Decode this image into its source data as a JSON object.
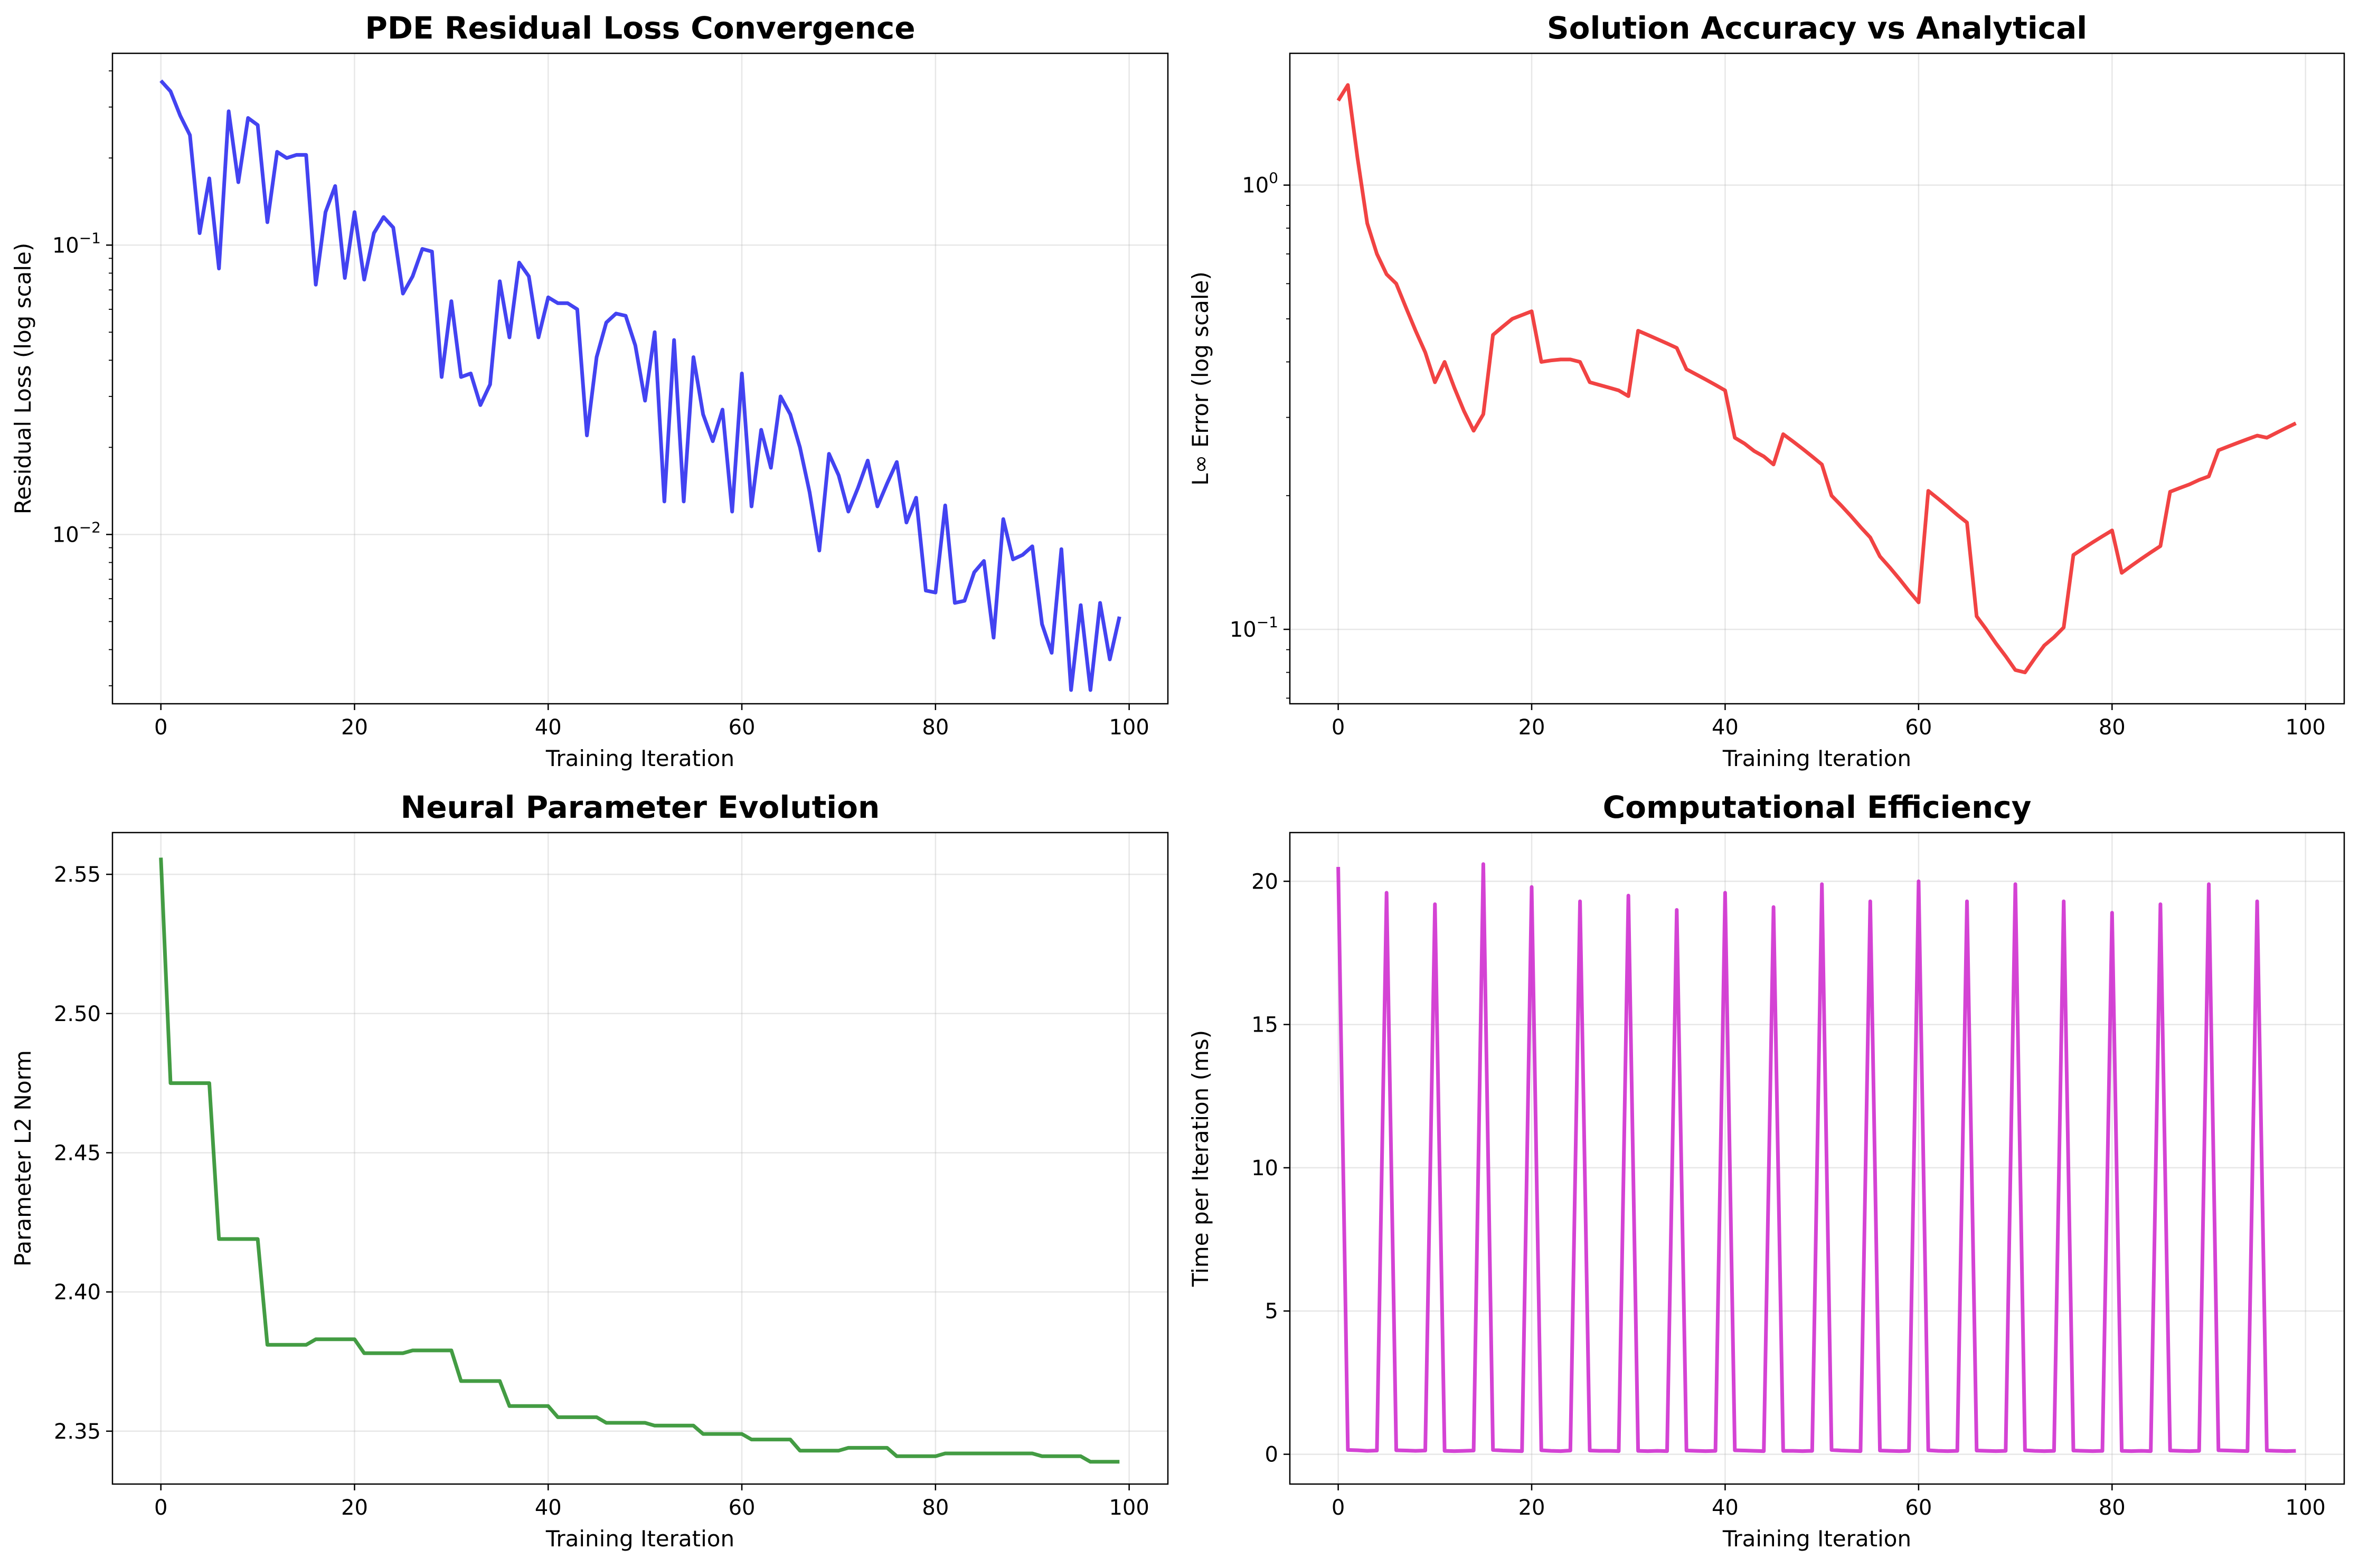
{
  "chart_data": [
    {
      "type": "line",
      "title": "PDE Residual Loss Convergence",
      "xlabel": "Training Iteration",
      "ylabel": "Residual Loss (log scale)",
      "yscale": "log",
      "xlim": [
        -5,
        104
      ],
      "ylim": [
        0.0026,
        0.46
      ],
      "xticks": [
        0,
        20,
        40,
        60,
        80,
        100
      ],
      "yticks": [
        0.01,
        0.1
      ],
      "ytick_labels": [
        [
          "10",
          "−2"
        ],
        [
          "10",
          "−1"
        ]
      ],
      "grid": true,
      "color": "#2222ee",
      "x": [
        0,
        1,
        2,
        3,
        4,
        5,
        6,
        7,
        8,
        9,
        10,
        11,
        12,
        13,
        14,
        15,
        16,
        17,
        18,
        19,
        20,
        21,
        22,
        23,
        24,
        25,
        26,
        27,
        28,
        29,
        30,
        31,
        32,
        33,
        34,
        35,
        36,
        37,
        38,
        39,
        40,
        41,
        42,
        43,
        44,
        45,
        46,
        47,
        48,
        49,
        50,
        51,
        52,
        53,
        54,
        55,
        56,
        57,
        58,
        59,
        60,
        61,
        62,
        63,
        64,
        65,
        66,
        67,
        68,
        69,
        70,
        71,
        72,
        73,
        74,
        75,
        76,
        77,
        78,
        79,
        80,
        81,
        82,
        83,
        84,
        85,
        86,
        87,
        88,
        89,
        90,
        91,
        92,
        93,
        94,
        95,
        96,
        97,
        98,
        99
      ],
      "y": [
        0.37,
        0.34,
        0.28,
        0.24,
        0.11,
        0.17,
        0.083,
        0.29,
        0.165,
        0.275,
        0.26,
        0.12,
        0.21,
        0.2,
        0.205,
        0.205,
        0.073,
        0.13,
        0.16,
        0.077,
        0.13,
        0.076,
        0.11,
        0.125,
        0.115,
        0.068,
        0.078,
        0.097,
        0.095,
        0.035,
        0.064,
        0.035,
        0.036,
        0.028,
        0.033,
        0.075,
        0.048,
        0.087,
        0.078,
        0.048,
        0.066,
        0.063,
        0.063,
        0.06,
        0.022,
        0.041,
        0.054,
        0.058,
        0.057,
        0.045,
        0.029,
        0.05,
        0.013,
        0.047,
        0.013,
        0.041,
        0.026,
        0.021,
        0.027,
        0.012,
        0.036,
        0.0125,
        0.023,
        0.017,
        0.03,
        0.026,
        0.02,
        0.014,
        0.0088,
        0.019,
        0.016,
        0.012,
        0.0145,
        0.018,
        0.0125,
        0.015,
        0.0178,
        0.011,
        0.0134,
        0.0064,
        0.0063,
        0.0126,
        0.0058,
        0.0059,
        0.0074,
        0.0081,
        0.0044,
        0.0113,
        0.0082,
        0.0085,
        0.0091,
        0.0049,
        0.0039,
        0.0089,
        0.0029,
        0.0057,
        0.0029,
        0.0058,
        0.0037,
        0.0052
      ]
    },
    {
      "type": "line",
      "title": "Solution Accuracy vs Analytical",
      "xlabel": "Training Iteration",
      "ylabel": "L∞ Error (log scale)",
      "yscale": "log",
      "xlim": [
        -5,
        104
      ],
      "ylim": [
        0.068,
        1.98
      ],
      "xticks": [
        0,
        20,
        40,
        60,
        80,
        100
      ],
      "yticks": [
        0.1,
        1
      ],
      "ytick_labels": [
        [
          "10",
          "−1"
        ],
        [
          "10",
          "0"
        ]
      ],
      "grid": true,
      "color": "#ee2222",
      "x": [
        0,
        1,
        2,
        3,
        4,
        5,
        6,
        7,
        8,
        9,
        10,
        11,
        12,
        13,
        14,
        15,
        16,
        17,
        18,
        19,
        20,
        21,
        22,
        23,
        24,
        25,
        26,
        27,
        28,
        29,
        30,
        31,
        32,
        33,
        34,
        35,
        36,
        37,
        38,
        39,
        40,
        41,
        42,
        43,
        44,
        45,
        46,
        47,
        48,
        49,
        50,
        51,
        52,
        53,
        54,
        55,
        56,
        57,
        58,
        59,
        60,
        61,
        62,
        63,
        64,
        65,
        66,
        67,
        68,
        69,
        70,
        71,
        72,
        73,
        74,
        75,
        76,
        77,
        78,
        79,
        80,
        81,
        82,
        83,
        84,
        85,
        86,
        87,
        88,
        89,
        90,
        91,
        92,
        93,
        94,
        95,
        96,
        97,
        98,
        99
      ],
      "y": [
        1.55,
        1.68,
        1.15,
        0.82,
        0.7,
        0.63,
        0.6,
        0.53,
        0.47,
        0.42,
        0.36,
        0.4,
        0.35,
        0.31,
        0.28,
        0.305,
        0.46,
        0.48,
        0.5,
        0.51,
        0.52,
        0.4,
        0.403,
        0.405,
        0.405,
        0.4,
        0.36,
        0.355,
        0.35,
        0.345,
        0.335,
        0.47,
        0.46,
        0.45,
        0.44,
        0.43,
        0.385,
        0.375,
        0.365,
        0.355,
        0.345,
        0.27,
        0.262,
        0.252,
        0.245,
        0.235,
        0.275,
        0.265,
        0.255,
        0.245,
        0.235,
        0.2,
        0.19,
        0.18,
        0.17,
        0.161,
        0.146,
        0.138,
        0.13,
        0.122,
        0.115,
        0.205,
        0.197,
        0.189,
        0.181,
        0.174,
        0.107,
        0.1,
        0.093,
        0.087,
        0.081,
        0.08,
        0.086,
        0.092,
        0.096,
        0.101,
        0.147,
        0.152,
        0.157,
        0.162,
        0.167,
        0.134,
        0.139,
        0.144,
        0.149,
        0.154,
        0.204,
        0.208,
        0.212,
        0.217,
        0.221,
        0.253,
        0.258,
        0.263,
        0.268,
        0.273,
        0.27,
        0.277,
        0.284,
        0.291
      ]
    },
    {
      "type": "line",
      "title": "Neural Parameter Evolution",
      "xlabel": "Training Iteration",
      "ylabel": "Parameter L2 Norm",
      "xlim": [
        -5,
        104
      ],
      "ylim": [
        2.331,
        2.565
      ],
      "xticks": [
        0,
        20,
        40,
        60,
        80,
        100
      ],
      "yticks": [
        2.35,
        2.4,
        2.45,
        2.5,
        2.55
      ],
      "ytick_labels": [
        "2.35",
        "2.40",
        "2.45",
        "2.50",
        "2.55"
      ],
      "grid": true,
      "color": "#228b22",
      "x": [
        0,
        1,
        5,
        6,
        10,
        11,
        15,
        16,
        20,
        21,
        25,
        26,
        30,
        31,
        35,
        36,
        40,
        41,
        45,
        46,
        50,
        51,
        55,
        56,
        60,
        61,
        65,
        66,
        70,
        71,
        75,
        76,
        80,
        81,
        85,
        86,
        90,
        91,
        95,
        96,
        99
      ],
      "y": [
        2.556,
        2.475,
        2.475,
        2.419,
        2.419,
        2.381,
        2.381,
        2.383,
        2.383,
        2.378,
        2.378,
        2.379,
        2.379,
        2.368,
        2.368,
        2.359,
        2.359,
        2.355,
        2.355,
        2.353,
        2.353,
        2.352,
        2.352,
        2.349,
        2.349,
        2.347,
        2.347,
        2.343,
        2.343,
        2.344,
        2.344,
        2.341,
        2.341,
        2.342,
        2.342,
        2.342,
        2.342,
        2.341,
        2.341,
        2.339,
        2.339
      ]
    },
    {
      "type": "line",
      "title": "Computational Efficiency",
      "xlabel": "Training Iteration",
      "ylabel": "Time per Iteration (ms)",
      "xlim": [
        -5,
        104
      ],
      "ylim": [
        -1.04,
        21.7
      ],
      "xticks": [
        0,
        20,
        40,
        60,
        80,
        100
      ],
      "yticks": [
        0,
        5,
        10,
        15,
        20
      ],
      "ytick_labels": [
        "0",
        "5",
        "10",
        "15",
        "20"
      ],
      "grid": true,
      "color": "#cc22cc",
      "x": [
        0,
        1,
        2,
        3,
        4,
        5,
        6,
        7,
        8,
        9,
        10,
        11,
        12,
        13,
        14,
        15,
        16,
        17,
        18,
        19,
        20,
        21,
        22,
        23,
        24,
        25,
        26,
        27,
        28,
        29,
        30,
        31,
        32,
        33,
        34,
        35,
        36,
        37,
        38,
        39,
        40,
        41,
        42,
        43,
        44,
        45,
        46,
        47,
        48,
        49,
        50,
        51,
        52,
        53,
        54,
        55,
        56,
        57,
        58,
        59,
        60,
        61,
        62,
        63,
        64,
        65,
        66,
        67,
        68,
        69,
        70,
        71,
        72,
        73,
        74,
        75,
        76,
        77,
        78,
        79,
        80,
        81,
        82,
        83,
        84,
        85,
        86,
        87,
        88,
        89,
        90,
        91,
        92,
        93,
        94,
        95,
        96,
        97,
        98,
        99
      ],
      "y": [
        20.5,
        0.15,
        0.14,
        0.12,
        0.13,
        19.6,
        0.14,
        0.13,
        0.12,
        0.13,
        19.2,
        0.12,
        0.11,
        0.12,
        0.13,
        20.6,
        0.15,
        0.13,
        0.12,
        0.11,
        19.8,
        0.14,
        0.12,
        0.11,
        0.13,
        19.3,
        0.13,
        0.12,
        0.12,
        0.11,
        19.5,
        0.12,
        0.11,
        0.12,
        0.11,
        19.0,
        0.13,
        0.12,
        0.11,
        0.12,
        19.6,
        0.14,
        0.13,
        0.12,
        0.11,
        19.1,
        0.12,
        0.12,
        0.11,
        0.12,
        19.9,
        0.15,
        0.13,
        0.12,
        0.11,
        19.3,
        0.13,
        0.12,
        0.11,
        0.12,
        20.0,
        0.14,
        0.12,
        0.11,
        0.12,
        19.3,
        0.13,
        0.12,
        0.11,
        0.12,
        19.9,
        0.14,
        0.12,
        0.11,
        0.12,
        19.3,
        0.13,
        0.12,
        0.11,
        0.12,
        18.9,
        0.12,
        0.11,
        0.12,
        0.11,
        19.2,
        0.13,
        0.12,
        0.11,
        0.12,
        19.9,
        0.14,
        0.13,
        0.12,
        0.11,
        19.3,
        0.13,
        0.12,
        0.11,
        0.12
      ]
    }
  ]
}
